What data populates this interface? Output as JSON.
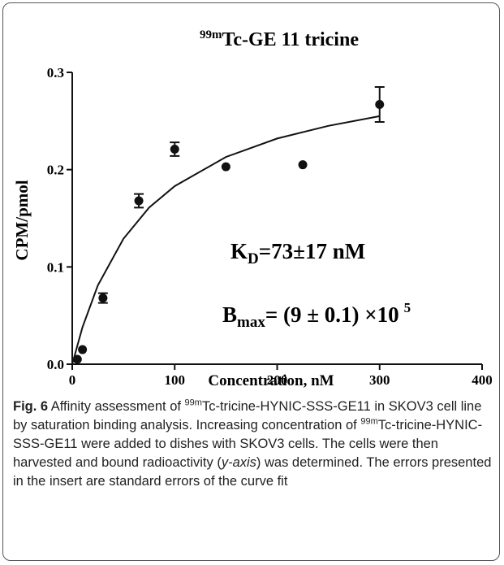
{
  "chart_data": {
    "type": "scatter",
    "title_superscript": "99m",
    "title": "Tc-GE 11 tricine",
    "xlabel": "Concentration, nM",
    "ylabel": "CPM/pmol",
    "x": [
      5,
      10,
      30,
      65,
      100,
      150,
      225,
      300
    ],
    "values": [
      0.005,
      0.015,
      0.068,
      0.168,
      0.221,
      0.203,
      0.205,
      0.267
    ],
    "errors": [
      null,
      null,
      0.005,
      0.007,
      0.007,
      null,
      null,
      0.018
    ],
    "color": "#111111",
    "fit": {
      "x": [
        0,
        10,
        25,
        50,
        75,
        100,
        150,
        200,
        250,
        300
      ],
      "values": [
        0,
        0.038,
        0.081,
        0.129,
        0.161,
        0.183,
        0.213,
        0.232,
        0.245,
        0.255
      ]
    },
    "xlim": [
      0,
      400
    ],
    "ylim": [
      0,
      0.3
    ],
    "xticks": [
      0,
      100,
      200,
      300,
      400
    ],
    "yticks": [
      {
        "value": 0,
        "label": "0.0"
      },
      0.1,
      0.2,
      0.3
    ],
    "annotations": [
      {
        "main": "K",
        "sub": "D",
        "rest": "=73±17 nM"
      },
      {
        "main": "B",
        "sub": "max",
        "rest": "= (9 ± 0.1) ×10",
        "sup": "5"
      }
    ]
  },
  "caption": {
    "label": "Fig. 6",
    "parts": [
      " Affinity assessment of ",
      "99m",
      "Tc-tricine-HYNIC-SSS-GE11 in SKOV3 cell line by saturation binding analysis. Increasing concentration of ",
      "99m",
      "Tc-tricine-HYNIC-SSS-GE11 were added to dishes with SKOV3 cells. The cells were then harvested and bound radioactivity (",
      "y-axis",
      ") was determined. The errors presented in the insert are standard errors of the curve fit"
    ]
  }
}
